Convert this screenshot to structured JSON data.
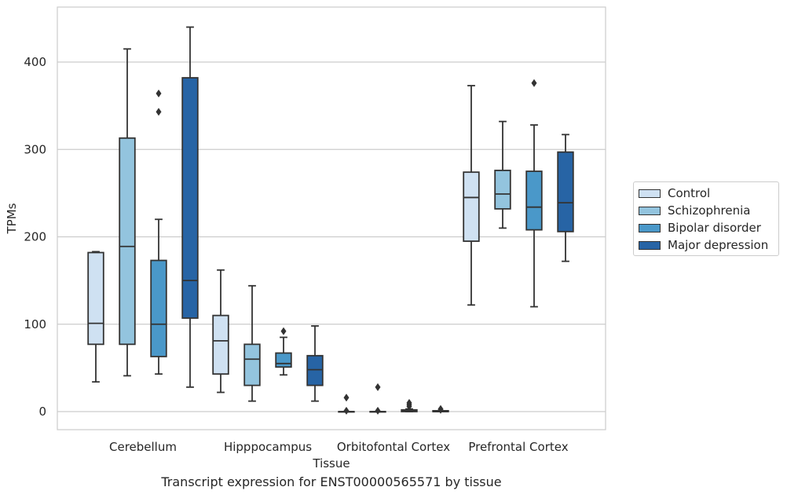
{
  "chart_data": {
    "type": "box",
    "xlabel": "Tissue",
    "ylabel": "TPMs",
    "ylim": [
      -22,
      462
    ],
    "yticks": [
      0,
      100,
      200,
      300,
      400
    ],
    "grid": "horizontal",
    "legend_position": "right",
    "categories": [
      "Cerebellum",
      "Hipppocampus",
      "Orbitofontal Cortex",
      "Prefrontal Cortex"
    ],
    "series": [
      {
        "name": "Control",
        "color": "#cfe1f2",
        "boxes": [
          {
            "whisker_low": 34,
            "q1": 77,
            "median": 101,
            "q3": 182,
            "whisker_high": 183,
            "outliers": []
          },
          {
            "whisker_low": 22,
            "q1": 43,
            "median": 81,
            "q3": 110,
            "whisker_high": 162,
            "outliers": []
          },
          {
            "whisker_low": 0,
            "q1": 0,
            "median": 0,
            "q3": 0,
            "whisker_high": 0,
            "outliers": [
              1,
              16
            ]
          },
          {
            "whisker_low": 122,
            "q1": 195,
            "median": 245,
            "q3": 274,
            "whisker_high": 373,
            "outliers": []
          }
        ]
      },
      {
        "name": "Schizophrenia",
        "color": "#93c4de",
        "boxes": [
          {
            "whisker_low": 41,
            "q1": 77,
            "median": 189,
            "q3": 313,
            "whisker_high": 415,
            "outliers": []
          },
          {
            "whisker_low": 12,
            "q1": 30,
            "median": 60,
            "q3": 77,
            "whisker_high": 144,
            "outliers": []
          },
          {
            "whisker_low": 0,
            "q1": 0,
            "median": 0,
            "q3": 0,
            "whisker_high": 0,
            "outliers": [
              1,
              28
            ]
          },
          {
            "whisker_low": 210,
            "q1": 232,
            "median": 249,
            "q3": 276,
            "whisker_high": 332,
            "outliers": []
          }
        ]
      },
      {
        "name": "Bipolar disorder",
        "color": "#4a98c9",
        "boxes": [
          {
            "whisker_low": 43,
            "q1": 63,
            "median": 100,
            "q3": 173,
            "whisker_high": 220,
            "outliers": [
              343,
              364
            ]
          },
          {
            "whisker_low": 42,
            "q1": 51,
            "median": 55,
            "q3": 67,
            "whisker_high": 85,
            "outliers": [
              92
            ]
          },
          {
            "whisker_low": 0,
            "q1": 0,
            "median": 1,
            "q3": 2,
            "whisker_high": 3,
            "outliers": [
              6,
              8,
              10
            ]
          },
          {
            "whisker_low": 120,
            "q1": 208,
            "median": 234,
            "q3": 275,
            "whisker_high": 328,
            "outliers": [
              376
            ]
          }
        ]
      },
      {
        "name": "Major depression",
        "color": "#2764a5",
        "boxes": [
          {
            "whisker_low": 28,
            "q1": 107,
            "median": 150,
            "q3": 382,
            "whisker_high": 440,
            "outliers": []
          },
          {
            "whisker_low": 12,
            "q1": 30,
            "median": 48,
            "q3": 64,
            "whisker_high": 98,
            "outliers": []
          },
          {
            "whisker_low": 0,
            "q1": 0,
            "median": 0,
            "q3": 1,
            "whisker_high": 1,
            "outliers": [
              2,
              3
            ]
          },
          {
            "whisker_low": 172,
            "q1": 206,
            "median": 239,
            "q3": 297,
            "whisker_high": 317,
            "outliers": []
          }
        ]
      }
    ],
    "caption": "Transcript expression for ENST00000565571 by tissue"
  }
}
